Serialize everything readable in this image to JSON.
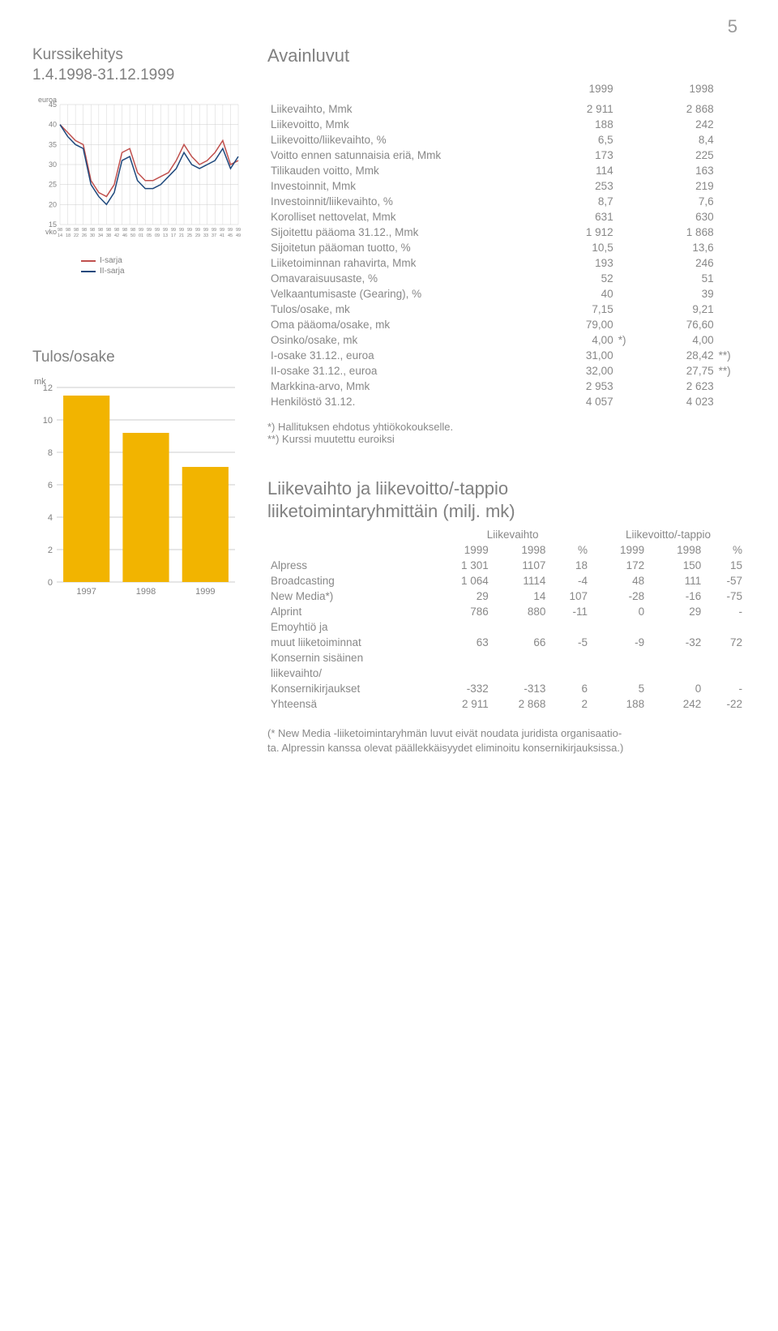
{
  "page_number": "5",
  "stock_chart": {
    "title_line1": "Kurssikehitys",
    "title_line2": "1.4.1998-31.12.1999",
    "y_axis_label": "euroa",
    "x_axis_label": "vko",
    "y_ticks": [
      15,
      20,
      25,
      30,
      35,
      40,
      45
    ],
    "ylim": [
      15,
      45
    ],
    "x_top_labels": [
      "98",
      "98",
      "98",
      "98",
      "98",
      "98",
      "98",
      "98",
      "98",
      "98",
      "99",
      "99",
      "99",
      "99",
      "99",
      "99",
      "99",
      "99",
      "99",
      "99",
      "99",
      "99",
      "99"
    ],
    "x_bottom_labels": [
      "14",
      "18",
      "22",
      "26",
      "30",
      "34",
      "38",
      "42",
      "46",
      "50",
      "01",
      "05",
      "09",
      "13",
      "17",
      "21",
      "25",
      "29",
      "33",
      "37",
      "41",
      "45",
      "49"
    ],
    "series": [
      {
        "name": "I-sarja",
        "color": "#c0504d",
        "values": [
          40,
          38,
          36,
          35,
          26,
          23,
          22,
          25,
          33,
          34,
          28,
          26,
          26,
          27,
          28,
          31,
          35,
          32,
          30,
          31,
          33,
          36,
          30,
          31
        ]
      },
      {
        "name": "II-sarja",
        "color": "#1f497d",
        "values": [
          40,
          37,
          35,
          34,
          25,
          22,
          20,
          23,
          31,
          32,
          26,
          24,
          24,
          25,
          27,
          29,
          33,
          30,
          29,
          30,
          31,
          34,
          29,
          32
        ]
      }
    ],
    "grid_color": "#cccccc",
    "background_color": "#ffffff",
    "label_fontsize": 9
  },
  "eps_chart": {
    "title": "Tulos/osake",
    "y_axis_label": "mk",
    "y_ticks": [
      0,
      2,
      4,
      6,
      8,
      10,
      12
    ],
    "ylim": [
      0,
      12
    ],
    "categories": [
      "1997",
      "1998",
      "1999"
    ],
    "values": [
      11.5,
      9.2,
      7.1
    ],
    "bar_color": "#f2b400",
    "grid_color": "#999999",
    "label_fontsize": 11,
    "bar_width_ratio": 0.78
  },
  "key_figures": {
    "heading": "Avainluvut",
    "col1_header": "1999",
    "col2_header": "1998",
    "rows": [
      {
        "label": "Liikevaihto, Mmk",
        "v1": "2 911",
        "v2": "2 868"
      },
      {
        "label": "Liikevoitto, Mmk",
        "v1": "188",
        "v2": "242"
      },
      {
        "label": "Liikevoitto/liikevaihto, %",
        "v1": "6,5",
        "v2": "8,4"
      },
      {
        "label": "Voitto ennen satunnaisia eriä, Mmk",
        "v1": "173",
        "v2": "225"
      },
      {
        "label": "Tilikauden voitto, Mmk",
        "v1": "114",
        "v2": "163"
      },
      {
        "label": "Investoinnit, Mmk",
        "v1": "253",
        "v2": "219"
      },
      {
        "label": "Investoinnit/liikevaihto, %",
        "v1": "8,7",
        "v2": "7,6"
      },
      {
        "label": "Korolliset nettovelat, Mmk",
        "v1": "631",
        "v2": "630"
      },
      {
        "label": "Sijoitettu pääoma 31.12., Mmk",
        "v1": "1 912",
        "v2": "1 868"
      },
      {
        "label": "Sijoitetun pääoman tuotto, %",
        "v1": "10,5",
        "v2": "13,6"
      },
      {
        "label": "Liiketoiminnan rahavirta, Mmk",
        "v1": "193",
        "v2": "246"
      },
      {
        "label": "Omavaraisuusaste, %",
        "v1": "52",
        "v2": "51"
      },
      {
        "label": "Velkaantumisaste (Gearing), %",
        "v1": "40",
        "v2": "39"
      },
      {
        "label": "Tulos/osake, mk",
        "v1": "7,15",
        "v2": "9,21"
      },
      {
        "label": "Oma pääoma/osake, mk",
        "v1": "79,00",
        "v2": "76,60"
      },
      {
        "label": "Osinko/osake, mk",
        "v1": "4,00",
        "n1": "*)",
        "v2": "4,00"
      },
      {
        "label": "I-osake 31.12., euroa",
        "v1": "31,00",
        "v2": "28,42",
        "n2": "**)"
      },
      {
        "label": "II-osake 31.12., euroa",
        "v1": "32,00",
        "v2": "27,75",
        "n2": "**)"
      },
      {
        "label": "Markkina-arvo, Mmk",
        "v1": "2 953",
        "v2": "2 623"
      },
      {
        "label": "Henkilöstö 31.12.",
        "v1": "4 057",
        "v2": "4 023"
      }
    ],
    "footnote1": "*) Hallituksen ehdotus yhtiökokoukselle.",
    "footnote2": "**) Kurssi muutettu euroiksi"
  },
  "segments": {
    "heading_l1": "Liikevaihto ja liikevoitto/-tappio",
    "heading_l2": "liiketoimintaryhmittäin (milj. mk)",
    "group1": "Liikevaihto",
    "group2": "Liikevoitto/-tappio",
    "sub_headers": [
      "1999",
      "1998",
      "%",
      "1999",
      "1998",
      "%"
    ],
    "rows": [
      {
        "label": "Alpress",
        "c": [
          "1 301",
          "1107",
          "18",
          "172",
          "150",
          "15"
        ]
      },
      {
        "label": "Broadcasting",
        "c": [
          "1 064",
          "1114",
          "-4",
          "48",
          "111",
          "-57"
        ]
      },
      {
        "label": "New Media*)",
        "c": [
          "29",
          "14",
          "107",
          "-28",
          "-16",
          "-75"
        ]
      },
      {
        "label": "Alprint",
        "c": [
          "786",
          "880",
          "-11",
          "0",
          "29",
          "-"
        ]
      },
      {
        "label": "Emoyhtiö ja",
        "c": [
          "",
          "",
          "",
          "",
          "",
          ""
        ]
      },
      {
        "label": "muut liiketoiminnat",
        "c": [
          "63",
          "66",
          "-5",
          "-9",
          "-32",
          "72"
        ]
      },
      {
        "label": "Konsernin sisäinen",
        "c": [
          "",
          "",
          "",
          "",
          "",
          ""
        ]
      },
      {
        "label": "liikevaihto/",
        "c": [
          "",
          "",
          "",
          "",
          "",
          ""
        ]
      },
      {
        "label": "Konsernikirjaukset",
        "c": [
          "-332",
          "-313",
          "6",
          "5",
          "0",
          "-"
        ]
      },
      {
        "label": "Yhteensä",
        "c": [
          "2 911",
          "2 868",
          "2",
          "188",
          "242",
          "-22"
        ]
      }
    ],
    "footnote_l1": "(* New Media -liiketoimintaryhmän luvut eivät noudata juridista organisaatio-",
    "footnote_l2": "ta. Alpressin kanssa olevat päällekkäisyydet eliminoitu konsernikirjauksissa.)"
  }
}
